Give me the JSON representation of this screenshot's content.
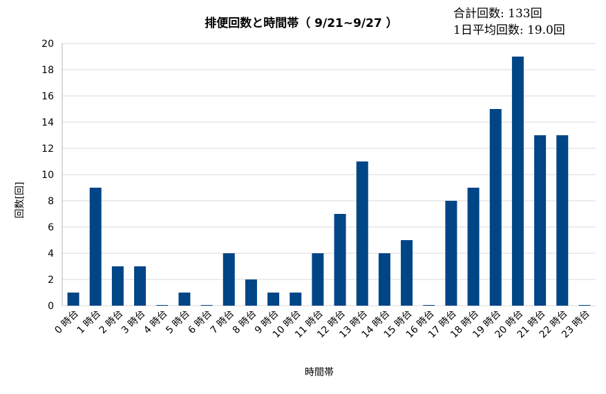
{
  "stats": {
    "total_label": "合計回数: 133回",
    "daily_avg_label": "1日平均回数: 19.0回"
  },
  "colors": {
    "bar": "#004586",
    "grid": "#d9d9d9",
    "axis": "#b3b3b3"
  },
  "chart_data": {
    "type": "bar",
    "title": "排便回数と時間帯（ 9/21~9/27 ）",
    "xlabel": "時間帯",
    "ylabel": "回数[回]",
    "ylim": [
      0,
      20
    ],
    "yticks": [
      0,
      2,
      4,
      6,
      8,
      10,
      12,
      14,
      16,
      18,
      20
    ],
    "grid": true,
    "legend": "none",
    "categories": [
      "0 時台",
      "1 時台",
      "2 時台",
      "3 時台",
      "4 時台",
      "5 時台",
      "6 時台",
      "7 時台",
      "8 時台",
      "9 時台",
      "10 時台",
      "11 時台",
      "12 時台",
      "13 時台",
      "14 時台",
      "15 時台",
      "16 時台",
      "17 時台",
      "18 時台",
      "19 時台",
      "20 時台",
      "21 時台",
      "22 時台",
      "23 時台"
    ],
    "values": [
      1,
      9,
      3,
      3,
      0,
      1,
      0,
      4,
      2,
      1,
      1,
      4,
      7,
      11,
      4,
      5,
      0,
      8,
      9,
      15,
      19,
      13,
      13,
      0
    ]
  }
}
